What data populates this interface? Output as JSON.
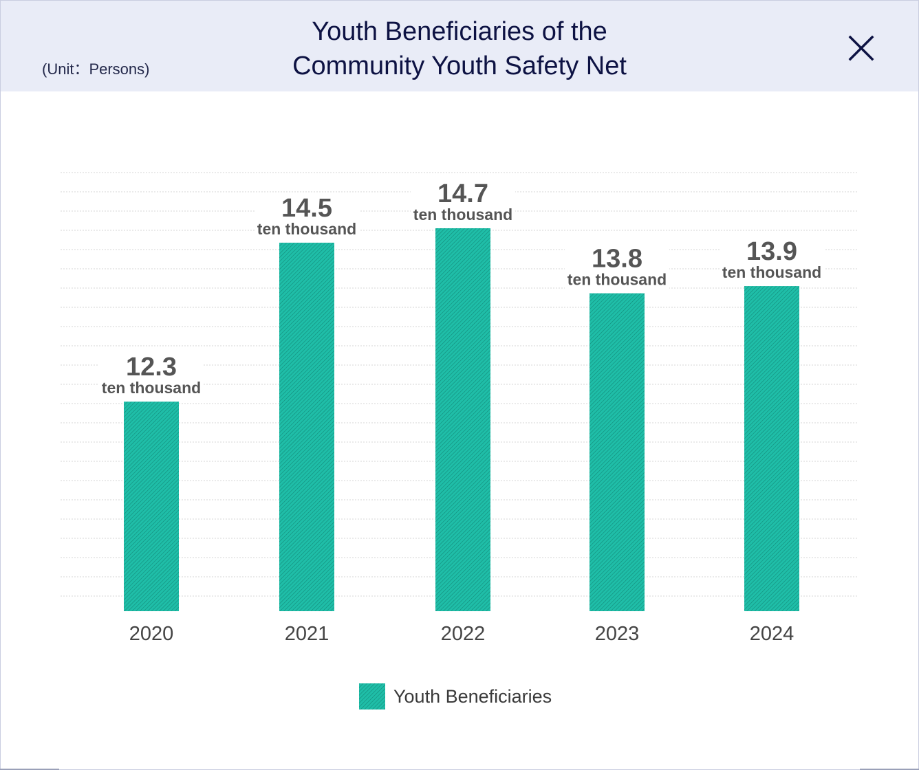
{
  "header": {
    "unit_label": "(Unit：Persons)",
    "title_line1": "Youth Beneficiaries of the",
    "title_line2": "Community Youth Safety Net",
    "close_icon": "close-icon"
  },
  "colors": {
    "bar": "#1fbea8",
    "bar_texture": "#138a79",
    "header_bg": "#e9ecf7",
    "title": "#0d1243",
    "value_text": "#555555"
  },
  "chart_data": {
    "type": "bar",
    "title": "Youth Beneficiaries of the Community Youth Safety Net",
    "unit": "Persons",
    "categories": [
      "2020",
      "2021",
      "2022",
      "2023",
      "2024"
    ],
    "series": [
      {
        "name": "Youth Beneficiaries",
        "values": [
          12.3,
          14.5,
          14.7,
          13.8,
          13.9
        ],
        "value_labels": [
          "12.3",
          "14.5",
          "14.7",
          "13.8",
          "13.9"
        ],
        "unit_labels": [
          "ten thousand",
          "ten thousand",
          "ten thousand",
          "ten thousand",
          "ten thousand"
        ]
      }
    ],
    "ylim": [
      9.4,
      14.7
    ],
    "grid": true,
    "legend": "bottom-center",
    "xlabel": "",
    "ylabel": ""
  }
}
